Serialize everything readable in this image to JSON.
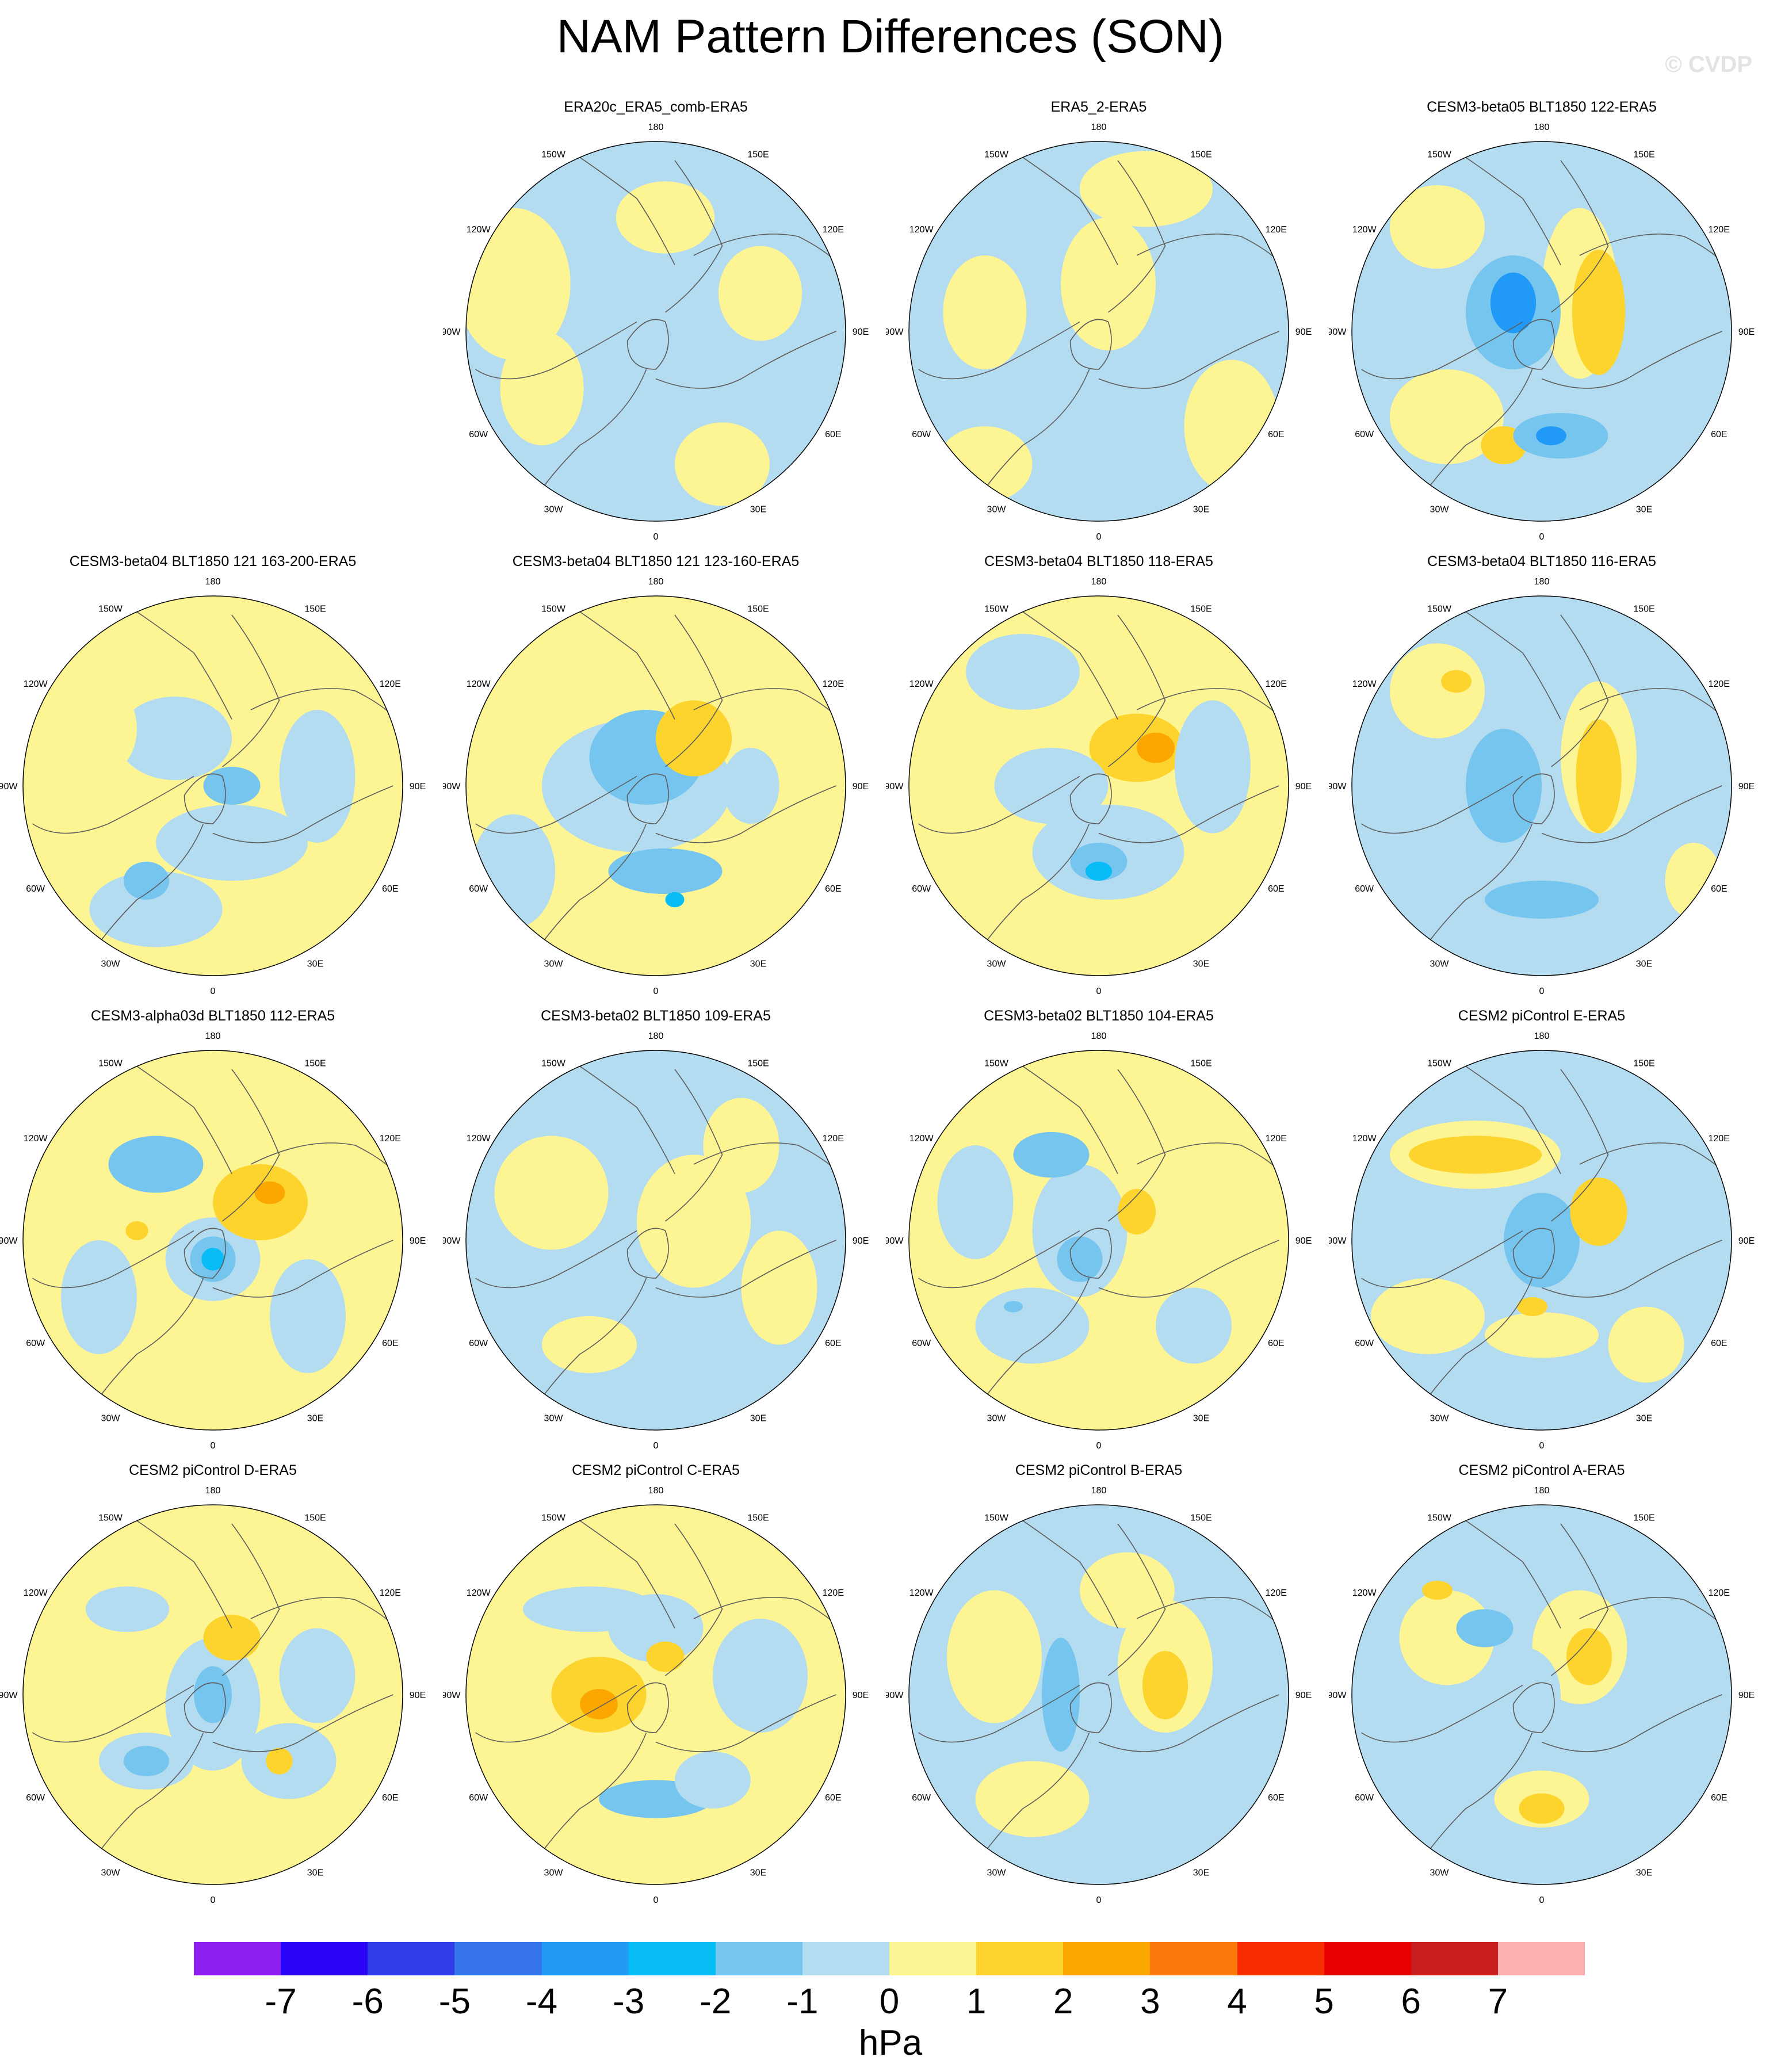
{
  "title": "NAM Pattern Differences (SON)",
  "credit": "© CVDP",
  "lon_labels": [
    "180",
    "150E",
    "120E",
    "90E",
    "60E",
    "30E",
    "0",
    "30W",
    "60W",
    "90W",
    "120W",
    "150W"
  ],
  "colors": {
    "pos1": "#fdf493",
    "pos2": "#fdd42d",
    "pos3": "#fba700",
    "neg1": "#b4dcf1",
    "neg2": "#76c5ef",
    "neg3": "#08bdf5",
    "neg4": "#209af6",
    "coast": "#5c5c5c",
    "border": "#8c8c8c"
  },
  "colorbar": {
    "colors": [
      "#8e1ef0",
      "#2b05f7",
      "#2f3ee7",
      "#3674ec",
      "#229bf6",
      "#08bdf5",
      "#76c5ef",
      "#b4dcf1",
      "#fdf493",
      "#fdd42d",
      "#fba700",
      "#f97a0a",
      "#f82d02",
      "#e80000",
      "#ca1d1e",
      "#fdb1b1"
    ],
    "ticks": [
      "-7",
      "-6",
      "-5",
      "-4",
      "-3",
      "-2",
      "-1",
      "0",
      "1",
      "2",
      "3",
      "4",
      "5",
      "6",
      "7"
    ],
    "units": "hPa"
  },
  "panels": [
    {
      "title": "ERA20c_ERA5_comb-ERA5",
      "base": "neg1",
      "blobs": [
        [
          0.05,
          0.6,
          0.26,
          0.19,
          "pos1"
        ],
        [
          0.55,
          0.2,
          0.22,
          0.25,
          "pos1"
        ],
        [
          -0.6,
          -0.3,
          0.22,
          0.3,
          "pos1"
        ],
        [
          -0.75,
          0.25,
          0.3,
          0.4,
          "pos1"
        ],
        [
          0.35,
          -0.7,
          0.25,
          0.22,
          "pos1"
        ]
      ]
    },
    {
      "title": "ERA5_2-ERA5",
      "base": "neg1",
      "blobs": [
        [
          0.05,
          0.25,
          0.25,
          0.35,
          "pos1"
        ],
        [
          0.25,
          0.75,
          0.35,
          0.2,
          "pos1"
        ],
        [
          -0.6,
          0.1,
          0.22,
          0.3,
          "pos1"
        ],
        [
          0.7,
          -0.5,
          0.25,
          0.35,
          "pos1"
        ],
        [
          -0.6,
          -0.7,
          0.25,
          0.2,
          "pos1"
        ]
      ]
    },
    {
      "title": "CESM3-beta05 BLT1850 122-ERA5",
      "base": "neg1",
      "blobs": [
        [
          0.2,
          0.2,
          0.2,
          0.45,
          "pos1"
        ],
        [
          0.3,
          0.1,
          0.14,
          0.33,
          "pos2"
        ],
        [
          -0.55,
          0.55,
          0.25,
          0.22,
          "pos1"
        ],
        [
          -0.5,
          -0.45,
          0.3,
          0.25,
          "pos1"
        ],
        [
          -0.2,
          -0.6,
          0.12,
          0.1,
          "pos2"
        ],
        [
          -0.15,
          0.1,
          0.25,
          0.3,
          "neg2"
        ],
        [
          -0.15,
          0.15,
          0.12,
          0.16,
          "neg4"
        ],
        [
          0.1,
          -0.55,
          0.25,
          0.12,
          "neg2"
        ],
        [
          0.05,
          -0.55,
          0.08,
          0.05,
          "neg4"
        ]
      ]
    },
    {
      "title": "CESM3-beta04 BLT1850 121 163-200-ERA5",
      "base": "pos1",
      "blobs": [
        [
          -0.2,
          0.25,
          0.3,
          0.22,
          "neg1"
        ],
        [
          0.1,
          -0.3,
          0.4,
          0.2,
          "neg1"
        ],
        [
          0.55,
          0.05,
          0.2,
          0.35,
          "neg1"
        ],
        [
          -0.3,
          -0.65,
          0.35,
          0.2,
          "neg1"
        ],
        [
          0.1,
          0.0,
          0.15,
          0.1,
          "neg2"
        ],
        [
          -0.35,
          -0.5,
          0.12,
          0.1,
          "neg2"
        ],
        [
          -0.6,
          0.3,
          0.2,
          0.25,
          "pos1"
        ]
      ]
    },
    {
      "title": "CESM3-beta04 BLT1850 121 123-160-ERA5",
      "base": "pos1",
      "blobs": [
        [
          -0.1,
          0.0,
          0.5,
          0.35,
          "neg1"
        ],
        [
          -0.05,
          0.15,
          0.3,
          0.25,
          "neg2"
        ],
        [
          0.05,
          -0.45,
          0.3,
          0.12,
          "neg2"
        ],
        [
          0.2,
          0.25,
          0.2,
          0.2,
          "pos2"
        ],
        [
          -0.75,
          -0.45,
          0.22,
          0.3,
          "neg1"
        ],
        [
          0.5,
          0.0,
          0.15,
          0.2,
          "neg1"
        ],
        [
          0.1,
          -0.6,
          0.05,
          0.04,
          "neg3"
        ]
      ]
    },
    {
      "title": "CESM3-beta04 BLT1850 118-ERA5",
      "base": "pos1",
      "blobs": [
        [
          0.05,
          -0.35,
          0.4,
          0.25,
          "neg1"
        ],
        [
          0.0,
          -0.4,
          0.15,
          0.1,
          "neg2"
        ],
        [
          0.0,
          -0.45,
          0.07,
          0.05,
          "neg3"
        ],
        [
          0.2,
          0.2,
          0.25,
          0.18,
          "pos2"
        ],
        [
          -0.25,
          0.0,
          0.3,
          0.2,
          "neg1"
        ],
        [
          0.6,
          0.1,
          0.2,
          0.35,
          "neg1"
        ],
        [
          -0.4,
          0.6,
          0.3,
          0.2,
          "neg1"
        ],
        [
          0.3,
          0.2,
          0.1,
          0.08,
          "pos3"
        ]
      ]
    },
    {
      "title": "CESM3-beta04 BLT1850 116-ERA5",
      "base": "neg1",
      "blobs": [
        [
          0.3,
          0.15,
          0.2,
          0.4,
          "pos1"
        ],
        [
          0.3,
          0.05,
          0.12,
          0.3,
          "pos2"
        ],
        [
          -0.2,
          0.0,
          0.2,
          0.3,
          "neg2"
        ],
        [
          -0.55,
          0.5,
          0.25,
          0.25,
          "pos1"
        ],
        [
          0.0,
          -0.6,
          0.3,
          0.1,
          "neg2"
        ],
        [
          -0.45,
          0.55,
          0.08,
          0.06,
          "pos2"
        ],
        [
          0.8,
          -0.5,
          0.15,
          0.2,
          "pos1"
        ]
      ]
    },
    {
      "title": "CESM3-alpha03d BLT1850 112-ERA5",
      "base": "pos1",
      "blobs": [
        [
          0.0,
          -0.1,
          0.25,
          0.22,
          "neg1"
        ],
        [
          0.0,
          -0.1,
          0.12,
          0.12,
          "neg2"
        ],
        [
          0.0,
          -0.1,
          0.06,
          0.06,
          "neg3"
        ],
        [
          0.25,
          0.2,
          0.25,
          0.2,
          "pos2"
        ],
        [
          -0.3,
          0.4,
          0.25,
          0.15,
          "neg2"
        ],
        [
          0.5,
          -0.4,
          0.2,
          0.3,
          "neg1"
        ],
        [
          -0.6,
          -0.3,
          0.2,
          0.3,
          "neg1"
        ],
        [
          0.3,
          0.25,
          0.08,
          0.06,
          "pos3"
        ],
        [
          -0.4,
          0.05,
          0.06,
          0.05,
          "pos2"
        ]
      ]
    },
    {
      "title": "CESM3-beta02 BLT1850 109-ERA5",
      "base": "neg1",
      "blobs": [
        [
          0.2,
          0.1,
          0.3,
          0.35,
          "pos1"
        ],
        [
          -0.55,
          0.25,
          0.3,
          0.3,
          "pos1"
        ],
        [
          0.45,
          0.5,
          0.2,
          0.25,
          "pos1"
        ],
        [
          -0.35,
          -0.55,
          0.25,
          0.15,
          "pos1"
        ],
        [
          0.65,
          -0.25,
          0.2,
          0.3,
          "pos1"
        ]
      ]
    },
    {
      "title": "CESM3-beta02 BLT1850 104-ERA5",
      "base": "pos1",
      "blobs": [
        [
          -0.1,
          0.05,
          0.25,
          0.35,
          "neg1"
        ],
        [
          -0.1,
          -0.1,
          0.12,
          0.12,
          "neg2"
        ],
        [
          0.2,
          0.15,
          0.1,
          0.12,
          "pos2"
        ],
        [
          -0.25,
          0.45,
          0.2,
          0.12,
          "neg2"
        ],
        [
          -0.35,
          -0.45,
          0.3,
          0.2,
          "neg1"
        ],
        [
          -0.65,
          0.2,
          0.2,
          0.3,
          "neg1"
        ],
        [
          0.5,
          -0.45,
          0.2,
          0.2,
          "neg1"
        ],
        [
          -0.45,
          -0.35,
          0.05,
          0.03,
          "neg2"
        ]
      ]
    },
    {
      "title": "CESM2 piControl E-ERA5",
      "base": "neg1",
      "blobs": [
        [
          -0.35,
          0.45,
          0.45,
          0.18,
          "pos1"
        ],
        [
          -0.35,
          0.45,
          0.35,
          0.1,
          "pos2"
        ],
        [
          0.0,
          0.0,
          0.2,
          0.25,
          "neg2"
        ],
        [
          0.3,
          0.15,
          0.15,
          0.18,
          "pos2"
        ],
        [
          0.0,
          -0.5,
          0.3,
          0.12,
          "pos1"
        ],
        [
          0.55,
          -0.55,
          0.2,
          0.2,
          "pos1"
        ],
        [
          -0.6,
          -0.4,
          0.3,
          0.2,
          "pos1"
        ],
        [
          -0.05,
          -0.35,
          0.08,
          0.05,
          "pos2"
        ]
      ]
    },
    {
      "title": "CESM2 piControl D-ERA5",
      "base": "pos1",
      "blobs": [
        [
          0.0,
          -0.05,
          0.25,
          0.35,
          "neg1"
        ],
        [
          0.0,
          0.0,
          0.1,
          0.15,
          "neg2"
        ],
        [
          0.1,
          0.3,
          0.15,
          0.12,
          "pos2"
        ],
        [
          -0.45,
          0.45,
          0.22,
          0.12,
          "neg1"
        ],
        [
          -0.35,
          -0.35,
          0.25,
          0.15,
          "neg1"
        ],
        [
          -0.35,
          -0.35,
          0.12,
          0.08,
          "neg2"
        ],
        [
          0.4,
          -0.35,
          0.25,
          0.2,
          "neg1"
        ],
        [
          0.35,
          -0.35,
          0.07,
          0.07,
          "pos2"
        ],
        [
          0.55,
          0.1,
          0.2,
          0.25,
          "neg1"
        ]
      ]
    },
    {
      "title": "CESM2 piControl C-ERA5",
      "base": "pos1",
      "blobs": [
        [
          -0.3,
          0.0,
          0.25,
          0.2,
          "pos2"
        ],
        [
          -0.3,
          -0.05,
          0.1,
          0.08,
          "pos3"
        ],
        [
          0.0,
          0.35,
          0.25,
          0.18,
          "neg1"
        ],
        [
          0.05,
          0.2,
          0.1,
          0.08,
          "pos2"
        ],
        [
          0.0,
          -0.55,
          0.3,
          0.1,
          "neg2"
        ],
        [
          0.55,
          0.1,
          0.25,
          0.3,
          "neg1"
        ],
        [
          -0.35,
          0.45,
          0.35,
          0.12,
          "neg1"
        ],
        [
          0.3,
          -0.45,
          0.2,
          0.15,
          "neg1"
        ]
      ]
    },
    {
      "title": "CESM2 piControl B-ERA5",
      "base": "neg1",
      "blobs": [
        [
          0.35,
          0.15,
          0.25,
          0.35,
          "pos1"
        ],
        [
          0.35,
          0.05,
          0.12,
          0.18,
          "pos2"
        ],
        [
          -0.2,
          0.0,
          0.1,
          0.3,
          "neg2"
        ],
        [
          -0.55,
          0.2,
          0.25,
          0.35,
          "pos1"
        ],
        [
          -0.35,
          -0.55,
          0.3,
          0.2,
          "pos1"
        ],
        [
          0.15,
          0.55,
          0.25,
          0.2,
          "pos1"
        ]
      ]
    },
    {
      "title": "CESM2 piControl A-ERA5",
      "base": "neg1",
      "blobs": [
        [
          0.2,
          0.25,
          0.25,
          0.3,
          "pos1"
        ],
        [
          0.25,
          0.2,
          0.12,
          0.15,
          "pos2"
        ],
        [
          0.0,
          -0.55,
          0.25,
          0.15,
          "pos1"
        ],
        [
          0.0,
          -0.6,
          0.12,
          0.08,
          "pos2"
        ],
        [
          -0.5,
          0.3,
          0.25,
          0.25,
          "pos1"
        ],
        [
          -0.3,
          0.35,
          0.15,
          0.1,
          "neg2"
        ],
        [
          -0.55,
          0.55,
          0.08,
          0.05,
          "pos2"
        ],
        [
          -0.1,
          0.0,
          0.2,
          0.25,
          "neg1"
        ]
      ]
    }
  ]
}
